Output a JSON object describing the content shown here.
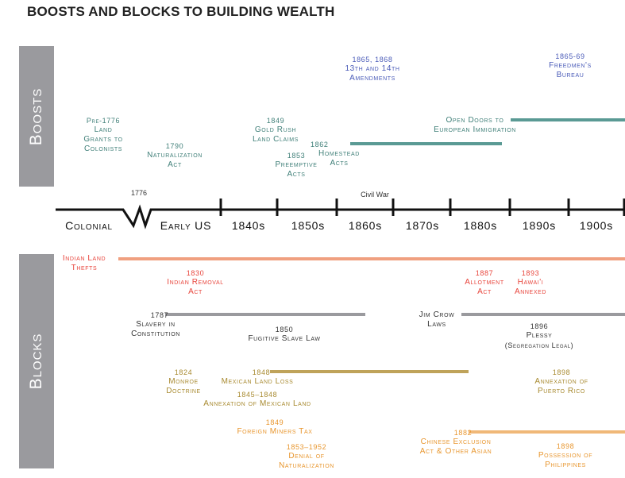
{
  "title": "BOOSTS AND BLOCKS TO BUILDING WEALTH",
  "sections": {
    "boosts": "Boosts",
    "blocks": "Blocks"
  },
  "colors": {
    "boost": "#5a9a94",
    "amendment": "#4a5bb8",
    "indian": "#f0a080",
    "slavery": "#9a9a9e",
    "mexican": "#bfa35a",
    "asian": "#f0b878"
  },
  "axis": {
    "eras": [
      "Colonial",
      "Early US",
      "1840s",
      "1850s",
      "1860s",
      "1870s",
      "1880s",
      "1890s",
      "1900s"
    ],
    "marker_1776": "1776",
    "marker_civil_war": "Civil War"
  },
  "boosts": {
    "land_grants": {
      "year": "Pre-1776",
      "lines": [
        "Land",
        "Grants to",
        "Colonists"
      ]
    },
    "naturalization": {
      "year": "1790",
      "lines": [
        "Naturalization",
        "Act"
      ]
    },
    "gold_rush": {
      "year": "1849",
      "lines": [
        "Gold Rush",
        "Land Claims"
      ]
    },
    "preemptive": {
      "year": "1853",
      "lines": [
        "Preemptive",
        "Acts"
      ]
    },
    "homestead": {
      "year": "1862",
      "lines": [
        "Homestead",
        "Acts"
      ]
    },
    "amendments": {
      "year": "1865, 1868",
      "lines": [
        "13th and 14th",
        "Amendments"
      ]
    },
    "freedmen": {
      "year": "1865-69",
      "lines": [
        "Freedmen's",
        "Bureau"
      ]
    },
    "immigration": {
      "lines": [
        "Open Doors to",
        "European Immigration"
      ]
    }
  },
  "blocks": {
    "indian_land": {
      "lines": [
        "Indian Land",
        "Thefts"
      ]
    },
    "indian_removal": {
      "year": "1830",
      "lines": [
        "Indian Removal",
        "Act"
      ]
    },
    "allotment": {
      "year": "1887",
      "lines": [
        "Allotment",
        "Act"
      ]
    },
    "hawaii": {
      "year": "1893",
      "lines": [
        "Hawai'i",
        "Annexed"
      ]
    },
    "slavery": {
      "year": "1787",
      "lines": [
        "Slavery in",
        "Constitution"
      ]
    },
    "fugitive": {
      "year": "1850",
      "lines": [
        "Fugitive Slave Law"
      ]
    },
    "jim_crow": {
      "lines": [
        "Jim Crow",
        "Laws"
      ]
    },
    "plessy": {
      "year": "1896",
      "lines": [
        "Plessy",
        "(Segregation Legal)"
      ]
    },
    "monroe": {
      "year": "1824",
      "lines": [
        "Monroe",
        "Doctrine"
      ]
    },
    "mexican_loss": {
      "year": "1848",
      "lines": [
        "Mexican Land Loss"
      ]
    },
    "annex_mexican": {
      "year": "1845–1848",
      "lines": [
        "Annexation of Mexican Land"
      ]
    },
    "puerto_rico": {
      "year": "1898",
      "lines": [
        "Annexation of",
        "Puerto Rico"
      ]
    },
    "miners_tax": {
      "year": "1849",
      "lines": [
        "Foreign Miners Tax"
      ]
    },
    "denial": {
      "year": "1853–1952",
      "lines": [
        "Denial of",
        "Naturalization"
      ]
    },
    "chinese": {
      "year": "1882",
      "lines": [
        "Chinese Exclusion",
        "Act & Other Asian"
      ]
    },
    "philippines": {
      "year": "1898",
      "lines": [
        "Possession of",
        "Philippines"
      ]
    }
  }
}
